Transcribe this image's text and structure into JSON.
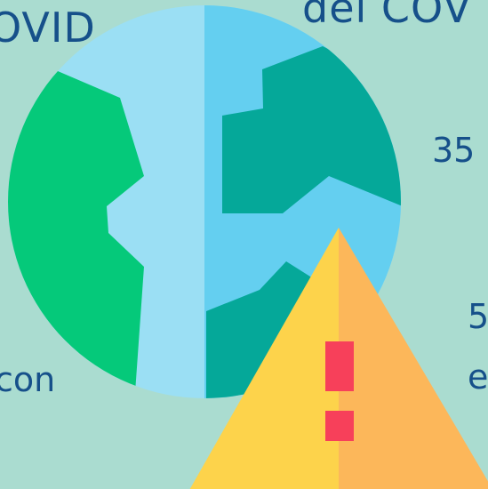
{
  "texts": {
    "covid_left": "OVID",
    "covid_top": "del COV",
    "num_35": "35",
    "num_5": "5",
    "letter_e": "e",
    "con": "con"
  },
  "colors": {
    "background": "#aadcd0",
    "text": "#16508a",
    "globe_light": "#9bdff4",
    "globe_mid": "#64cff0",
    "land_green": "#05c97a",
    "land_teal": "#05a899",
    "warning_left": "#fdd34b",
    "warning_right": "#fcb75a",
    "exclamation": "#f7405a"
  },
  "icons": [
    "globe-icon",
    "warning-triangle-icon"
  ]
}
